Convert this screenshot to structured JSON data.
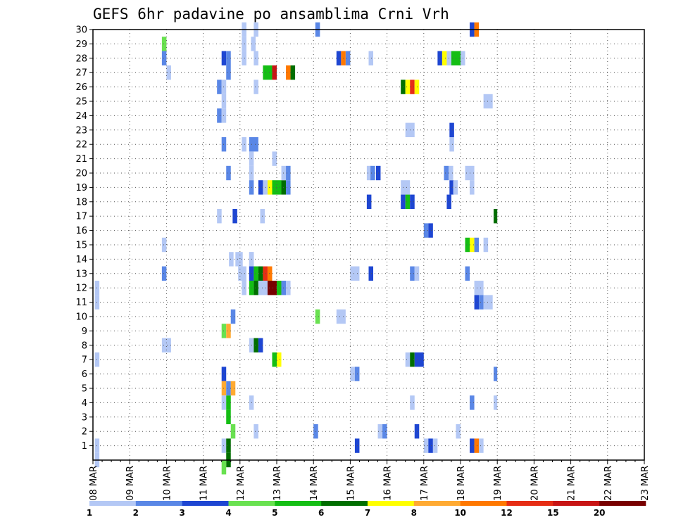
{
  "chart_data": {
    "type": "heatmap",
    "title": "GEFS 6hr padavine po ansamblima Crni Vrh",
    "xlabel": "",
    "ylabel": "",
    "grid": true,
    "x_ticks": [
      "08 MAR",
      "09 MAR",
      "10 MAR",
      "11 MAR",
      "12 MAR",
      "13 MAR",
      "14 MAR",
      "15 MAR",
      "16 MAR",
      "17 MAR",
      "18 MAR",
      "19 MAR",
      "20 MAR",
      "21 MAR",
      "22 MAR",
      "23 MAR"
    ],
    "y_ticks": [
      "1",
      "2",
      "3",
      "4",
      "5",
      "6",
      "7",
      "8",
      "9",
      "10",
      "11",
      "12",
      "13",
      "14",
      "15",
      "16",
      "17",
      "18",
      "19",
      "20",
      "21",
      "22",
      "23",
      "24",
      "25",
      "26",
      "27",
      "28",
      "29",
      "30"
    ],
    "x_unit": "6-hour step from 08 MAR 00Z",
    "y_range": [
      0,
      30
    ],
    "x_range": [
      0,
      60
    ],
    "legend": {
      "position": "bottom",
      "labels": [
        "1",
        "2",
        "3",
        "4",
        "5",
        "6",
        "7",
        "8",
        "10",
        "12",
        "15",
        "20"
      ],
      "colors": [
        "#b4c8f5",
        "#5a87e6",
        "#1e46d2",
        "#69e150",
        "#14be14",
        "#006e00",
        "#ffff00",
        "#ffaa32",
        "#ff7800",
        "#e62d14",
        "#c81414",
        "#780000"
      ]
    },
    "cells": [
      {
        "x": 0.2,
        "y": 12,
        "w": 0.5,
        "c": 0
      },
      {
        "x": 0.2,
        "y": 11,
        "w": 0.5,
        "c": 0
      },
      {
        "x": 0.2,
        "y": 7,
        "w": 0.5,
        "c": 0
      },
      {
        "x": 0.2,
        "y": 1,
        "w": 0.5,
        "c": 0
      },
      {
        "x": 0.2,
        "y": 0,
        "w": 0.5,
        "c": 0
      },
      {
        "x": 7.5,
        "y": 29,
        "w": 0.5,
        "c": 3
      },
      {
        "x": 7.5,
        "y": 28,
        "w": 0.5,
        "c": 1
      },
      {
        "x": 8,
        "y": 27,
        "w": 0.5,
        "c": 0
      },
      {
        "x": 7.5,
        "y": 15,
        "w": 0.5,
        "c": 0
      },
      {
        "x": 7.5,
        "y": 13,
        "w": 0.5,
        "c": 1
      },
      {
        "x": 7.5,
        "y": 8,
        "w": 1,
        "c": 0
      },
      {
        "x": 13.5,
        "y": 26,
        "w": 0.5,
        "c": 1
      },
      {
        "x": 13.5,
        "y": 24,
        "w": 0.5,
        "c": 1
      },
      {
        "x": 14,
        "y": 26,
        "w": 0.5,
        "c": 0
      },
      {
        "x": 14,
        "y": 25,
        "w": 0.5,
        "c": 0
      },
      {
        "x": 14,
        "y": 24,
        "w": 0.5,
        "c": 0
      },
      {
        "x": 14,
        "y": 22,
        "w": 0.5,
        "c": 1
      },
      {
        "x": 13.5,
        "y": 17,
        "w": 0.5,
        "c": 0
      },
      {
        "x": 14,
        "y": 28,
        "w": 0.5,
        "c": 2
      },
      {
        "x": 14.5,
        "y": 28,
        "w": 0.5,
        "c": 1
      },
      {
        "x": 14.5,
        "y": 27,
        "w": 0.5,
        "c": 1
      },
      {
        "x": 14,
        "y": 9,
        "w": 0.5,
        "c": 3
      },
      {
        "x": 14.5,
        "y": 9,
        "w": 0.5,
        "c": 7
      },
      {
        "x": 14,
        "y": 6,
        "w": 0.5,
        "c": 2
      },
      {
        "x": 14,
        "y": 5,
        "w": 0.5,
        "c": 7
      },
      {
        "x": 14.5,
        "y": 5,
        "w": 0.5,
        "c": 1
      },
      {
        "x": 15,
        "y": 5,
        "w": 0.5,
        "c": 7
      },
      {
        "x": 14,
        "y": 4,
        "w": 0.5,
        "c": 0
      },
      {
        "x": 14.5,
        "y": 4,
        "w": 0.5,
        "c": 4
      },
      {
        "x": 14.5,
        "y": 3,
        "w": 0.5,
        "c": 4
      },
      {
        "x": 15,
        "y": 2,
        "w": 0.5,
        "c": 3
      },
      {
        "x": 14,
        "y": 1,
        "w": 0.5,
        "c": 0
      },
      {
        "x": 14.5,
        "y": 1,
        "w": 0.5,
        "c": 5
      },
      {
        "x": 14.5,
        "y": 0,
        "w": 0.5,
        "c": 5
      },
      {
        "x": 14,
        "y": -0.5,
        "w": 0.5,
        "c": 3
      },
      {
        "x": 16.2,
        "y": 29,
        "w": 0.5,
        "c": 0
      },
      {
        "x": 16.2,
        "y": 28,
        "w": 0.5,
        "c": 0
      },
      {
        "x": 17.2,
        "y": 29,
        "w": 0.5,
        "c": 0
      },
      {
        "x": 16.2,
        "y": 22,
        "w": 0.5,
        "c": 0
      },
      {
        "x": 17,
        "y": 22,
        "w": 1,
        "c": 1
      },
      {
        "x": 17,
        "y": 21,
        "w": 0.5,
        "c": 0
      },
      {
        "x": 17,
        "y": 20,
        "w": 0.5,
        "c": 0
      },
      {
        "x": 17,
        "y": 19,
        "w": 0.5,
        "c": 1
      },
      {
        "x": 14.5,
        "y": 20,
        "w": 0.5,
        "c": 1
      },
      {
        "x": 14.8,
        "y": 14,
        "w": 0.5,
        "c": 0
      },
      {
        "x": 15.2,
        "y": 17,
        "w": 0.5,
        "c": 2
      },
      {
        "x": 15.5,
        "y": 14,
        "w": 0.5,
        "c": 0
      },
      {
        "x": 15.8,
        "y": 13,
        "w": 0.5,
        "c": 0
      },
      {
        "x": 16.2,
        "y": 13,
        "w": 0.5,
        "c": 0
      },
      {
        "x": 16.2,
        "y": 12,
        "w": 0.5,
        "c": 0
      },
      {
        "x": 17,
        "y": 14,
        "w": 0.5,
        "c": 0
      },
      {
        "x": 17,
        "y": 13,
        "w": 0.5,
        "c": 0
      },
      {
        "x": 17,
        "y": 4,
        "w": 0.5,
        "c": 0
      },
      {
        "x": 17,
        "y": 8,
        "w": 0.5,
        "c": 0
      },
      {
        "x": 17.5,
        "y": 2,
        "w": 0.5,
        "c": 0
      },
      {
        "x": 15,
        "y": 10,
        "w": 0.5,
        "c": 1
      },
      {
        "x": 17,
        "y": 14,
        "w": 0.5,
        "c": 0
      },
      {
        "x": 15.8,
        "y": 14,
        "w": 0.5,
        "c": 0
      },
      {
        "x": 17.5,
        "y": 28,
        "w": 0.5,
        "c": 0
      },
      {
        "x": 17.5,
        "y": 26,
        "w": 0.5,
        "c": 0
      },
      {
        "x": 17.5,
        "y": 30,
        "w": 0.5,
        "c": 0
      },
      {
        "x": 16.2,
        "y": 30,
        "w": 0.5,
        "c": 0
      },
      {
        "x": 18.5,
        "y": 27,
        "w": 1,
        "c": 4
      },
      {
        "x": 19.5,
        "y": 27,
        "w": 0.5,
        "c": 10
      },
      {
        "x": 17,
        "y": 13,
        "w": 0.5,
        "c": 2
      },
      {
        "x": 17.5,
        "y": 13,
        "w": 0.5,
        "c": 4
      },
      {
        "x": 18,
        "y": 13,
        "w": 0.5,
        "c": 5
      },
      {
        "x": 18.5,
        "y": 13,
        "w": 0.5,
        "c": 9
      },
      {
        "x": 19,
        "y": 13,
        "w": 0.5,
        "c": 8
      },
      {
        "x": 17,
        "y": 12,
        "w": 0.5,
        "c": 4
      },
      {
        "x": 17.5,
        "y": 12,
        "w": 0.5,
        "c": 5
      },
      {
        "x": 18,
        "y": 12,
        "w": 0.5,
        "c": 0
      },
      {
        "x": 18.5,
        "y": 12,
        "w": 0.5,
        "c": 0
      },
      {
        "x": 19,
        "y": 12,
        "w": 1,
        "c": 11
      },
      {
        "x": 20,
        "y": 12,
        "w": 0.5,
        "c": 4
      },
      {
        "x": 20.5,
        "y": 12,
        "w": 0.5,
        "c": 1
      },
      {
        "x": 21,
        "y": 12,
        "w": 0.5,
        "c": 0
      },
      {
        "x": 18,
        "y": 19,
        "w": 0.5,
        "c": 2
      },
      {
        "x": 18.5,
        "y": 19,
        "w": 0.5,
        "c": 0
      },
      {
        "x": 19,
        "y": 19,
        "w": 0.5,
        "c": 6
      },
      {
        "x": 19.5,
        "y": 19,
        "w": 1,
        "c": 4
      },
      {
        "x": 20.5,
        "y": 19,
        "w": 0.5,
        "c": 5
      },
      {
        "x": 21,
        "y": 19,
        "w": 0.5,
        "c": 1
      },
      {
        "x": 20.5,
        "y": 20,
        "w": 0.5,
        "c": 0
      },
      {
        "x": 21,
        "y": 20,
        "w": 0.5,
        "c": 1
      },
      {
        "x": 19.5,
        "y": 21,
        "w": 0.5,
        "c": 0
      },
      {
        "x": 18.2,
        "y": 17,
        "w": 0.5,
        "c": 0
      },
      {
        "x": 17.5,
        "y": 8,
        "w": 0.5,
        "c": 5
      },
      {
        "x": 18,
        "y": 8,
        "w": 0.5,
        "c": 2
      },
      {
        "x": 19.5,
        "y": 7,
        "w": 0.5,
        "c": 4
      },
      {
        "x": 20,
        "y": 7,
        "w": 0.5,
        "c": 6
      },
      {
        "x": 21,
        "y": 27,
        "w": 0.5,
        "c": 8
      },
      {
        "x": 21.5,
        "y": 27,
        "w": 0.5,
        "c": 5
      },
      {
        "x": 24.2,
        "y": 30,
        "w": 0.5,
        "c": 1
      },
      {
        "x": 24,
        "y": 2,
        "w": 0.5,
        "c": 1
      },
      {
        "x": 24.2,
        "y": 10,
        "w": 0.5,
        "c": 3
      },
      {
        "x": 26.5,
        "y": 28,
        "w": 0.5,
        "c": 2
      },
      {
        "x": 27,
        "y": 28,
        "w": 0.5,
        "c": 8
      },
      {
        "x": 27.5,
        "y": 28,
        "w": 0.5,
        "c": 1
      },
      {
        "x": 26.5,
        "y": 10,
        "w": 1,
        "c": 0
      },
      {
        "x": 28,
        "y": 13,
        "w": 1,
        "c": 0
      },
      {
        "x": 28,
        "y": 6,
        "w": 0.5,
        "c": 0
      },
      {
        "x": 28.5,
        "y": 6,
        "w": 0.5,
        "c": 1
      },
      {
        "x": 28.5,
        "y": 1,
        "w": 0.5,
        "c": 2
      },
      {
        "x": 30,
        "y": 28,
        "w": 0.5,
        "c": 0
      },
      {
        "x": 29.8,
        "y": 20,
        "w": 0.5,
        "c": 0
      },
      {
        "x": 30.2,
        "y": 20,
        "w": 0.5,
        "c": 1
      },
      {
        "x": 30.8,
        "y": 20,
        "w": 0.5,
        "c": 2
      },
      {
        "x": 29.8,
        "y": 18,
        "w": 0.5,
        "c": 2
      },
      {
        "x": 30,
        "y": 13,
        "w": 0.5,
        "c": 2
      },
      {
        "x": 31,
        "y": 2,
        "w": 0.5,
        "c": 0
      },
      {
        "x": 31.5,
        "y": 2,
        "w": 0.5,
        "c": 1
      },
      {
        "x": 33.5,
        "y": 26,
        "w": 0.5,
        "c": 5
      },
      {
        "x": 34,
        "y": 26,
        "w": 0.5,
        "c": 6
      },
      {
        "x": 34.5,
        "y": 26,
        "w": 0.5,
        "c": 9
      },
      {
        "x": 35,
        "y": 26,
        "w": 0.5,
        "c": 6
      },
      {
        "x": 33.5,
        "y": 19,
        "w": 1,
        "c": 0
      },
      {
        "x": 33.5,
        "y": 18,
        "w": 0.5,
        "c": 2
      },
      {
        "x": 34,
        "y": 18,
        "w": 0.5,
        "c": 4
      },
      {
        "x": 34.5,
        "y": 18,
        "w": 0.5,
        "c": 2
      },
      {
        "x": 34,
        "y": 23,
        "w": 1,
        "c": 0
      },
      {
        "x": 34.5,
        "y": 13,
        "w": 0.5,
        "c": 1
      },
      {
        "x": 35,
        "y": 13,
        "w": 0.5,
        "c": 0
      },
      {
        "x": 34.5,
        "y": 4,
        "w": 0.5,
        "c": 0
      },
      {
        "x": 35,
        "y": 2,
        "w": 0.5,
        "c": 2
      },
      {
        "x": 34,
        "y": 7,
        "w": 0.5,
        "c": 0
      },
      {
        "x": 34.5,
        "y": 7,
        "w": 0.5,
        "c": 5
      },
      {
        "x": 35,
        "y": 7,
        "w": 1,
        "c": 2
      },
      {
        "x": 36,
        "y": 16,
        "w": 0.5,
        "c": 1
      },
      {
        "x": 36.5,
        "y": 16,
        "w": 0.5,
        "c": 2
      },
      {
        "x": 36,
        "y": 1,
        "w": 0.5,
        "c": 0
      },
      {
        "x": 36.5,
        "y": 1,
        "w": 0.5,
        "c": 2
      },
      {
        "x": 37,
        "y": 1,
        "w": 0.5,
        "c": 0
      },
      {
        "x": 37.5,
        "y": 28,
        "w": 0.5,
        "c": 2
      },
      {
        "x": 38,
        "y": 28,
        "w": 0.5,
        "c": 6
      },
      {
        "x": 38.5,
        "y": 28,
        "w": 0.5,
        "c": 0
      },
      {
        "x": 39,
        "y": 28,
        "w": 1,
        "c": 4
      },
      {
        "x": 40,
        "y": 28,
        "w": 0.5,
        "c": 0
      },
      {
        "x": 38.8,
        "y": 23,
        "w": 0.5,
        "c": 2
      },
      {
        "x": 38.8,
        "y": 22,
        "w": 0.5,
        "c": 0
      },
      {
        "x": 38.8,
        "y": 19,
        "w": 0.5,
        "c": 2
      },
      {
        "x": 39.2,
        "y": 19,
        "w": 0.5,
        "c": 0
      },
      {
        "x": 38.5,
        "y": 18,
        "w": 0.5,
        "c": 2
      },
      {
        "x": 38.2,
        "y": 20,
        "w": 0.5,
        "c": 1
      },
      {
        "x": 38.7,
        "y": 20,
        "w": 0.5,
        "c": 0
      },
      {
        "x": 39.5,
        "y": 2,
        "w": 0.5,
        "c": 0
      },
      {
        "x": 40.5,
        "y": 20,
        "w": 1,
        "c": 0
      },
      {
        "x": 41,
        "y": 19,
        "w": 0.5,
        "c": 0
      },
      {
        "x": 40.5,
        "y": 15,
        "w": 0.5,
        "c": 4
      },
      {
        "x": 41,
        "y": 15,
        "w": 0.5,
        "c": 6
      },
      {
        "x": 41.5,
        "y": 15,
        "w": 0.5,
        "c": 1
      },
      {
        "x": 40.5,
        "y": 13,
        "w": 0.5,
        "c": 1
      },
      {
        "x": 41,
        "y": 4,
        "w": 0.5,
        "c": 1
      },
      {
        "x": 41,
        "y": 30,
        "w": 0.5,
        "c": 2
      },
      {
        "x": 41.5,
        "y": 30,
        "w": 0.5,
        "c": 8
      },
      {
        "x": 41,
        "y": 1,
        "w": 0.5,
        "c": 2
      },
      {
        "x": 41.5,
        "y": 1,
        "w": 0.5,
        "c": 8
      },
      {
        "x": 42,
        "y": 1,
        "w": 0.5,
        "c": 0
      },
      {
        "x": 42.5,
        "y": 25,
        "w": 1,
        "c": 0
      },
      {
        "x": 42.5,
        "y": 15,
        "w": 0.5,
        "c": 0
      },
      {
        "x": 41.5,
        "y": 12,
        "w": 1,
        "c": 0
      },
      {
        "x": 41.5,
        "y": 11,
        "w": 0.5,
        "c": 2
      },
      {
        "x": 42,
        "y": 11,
        "w": 0.5,
        "c": 1
      },
      {
        "x": 42.5,
        "y": 11,
        "w": 1,
        "c": 0
      },
      {
        "x": 43.6,
        "y": 17,
        "w": 0.4,
        "c": 5
      },
      {
        "x": 43.6,
        "y": 6,
        "w": 0.4,
        "c": 1
      },
      {
        "x": 43.6,
        "y": 4,
        "w": 0.4,
        "c": 0
      }
    ]
  }
}
